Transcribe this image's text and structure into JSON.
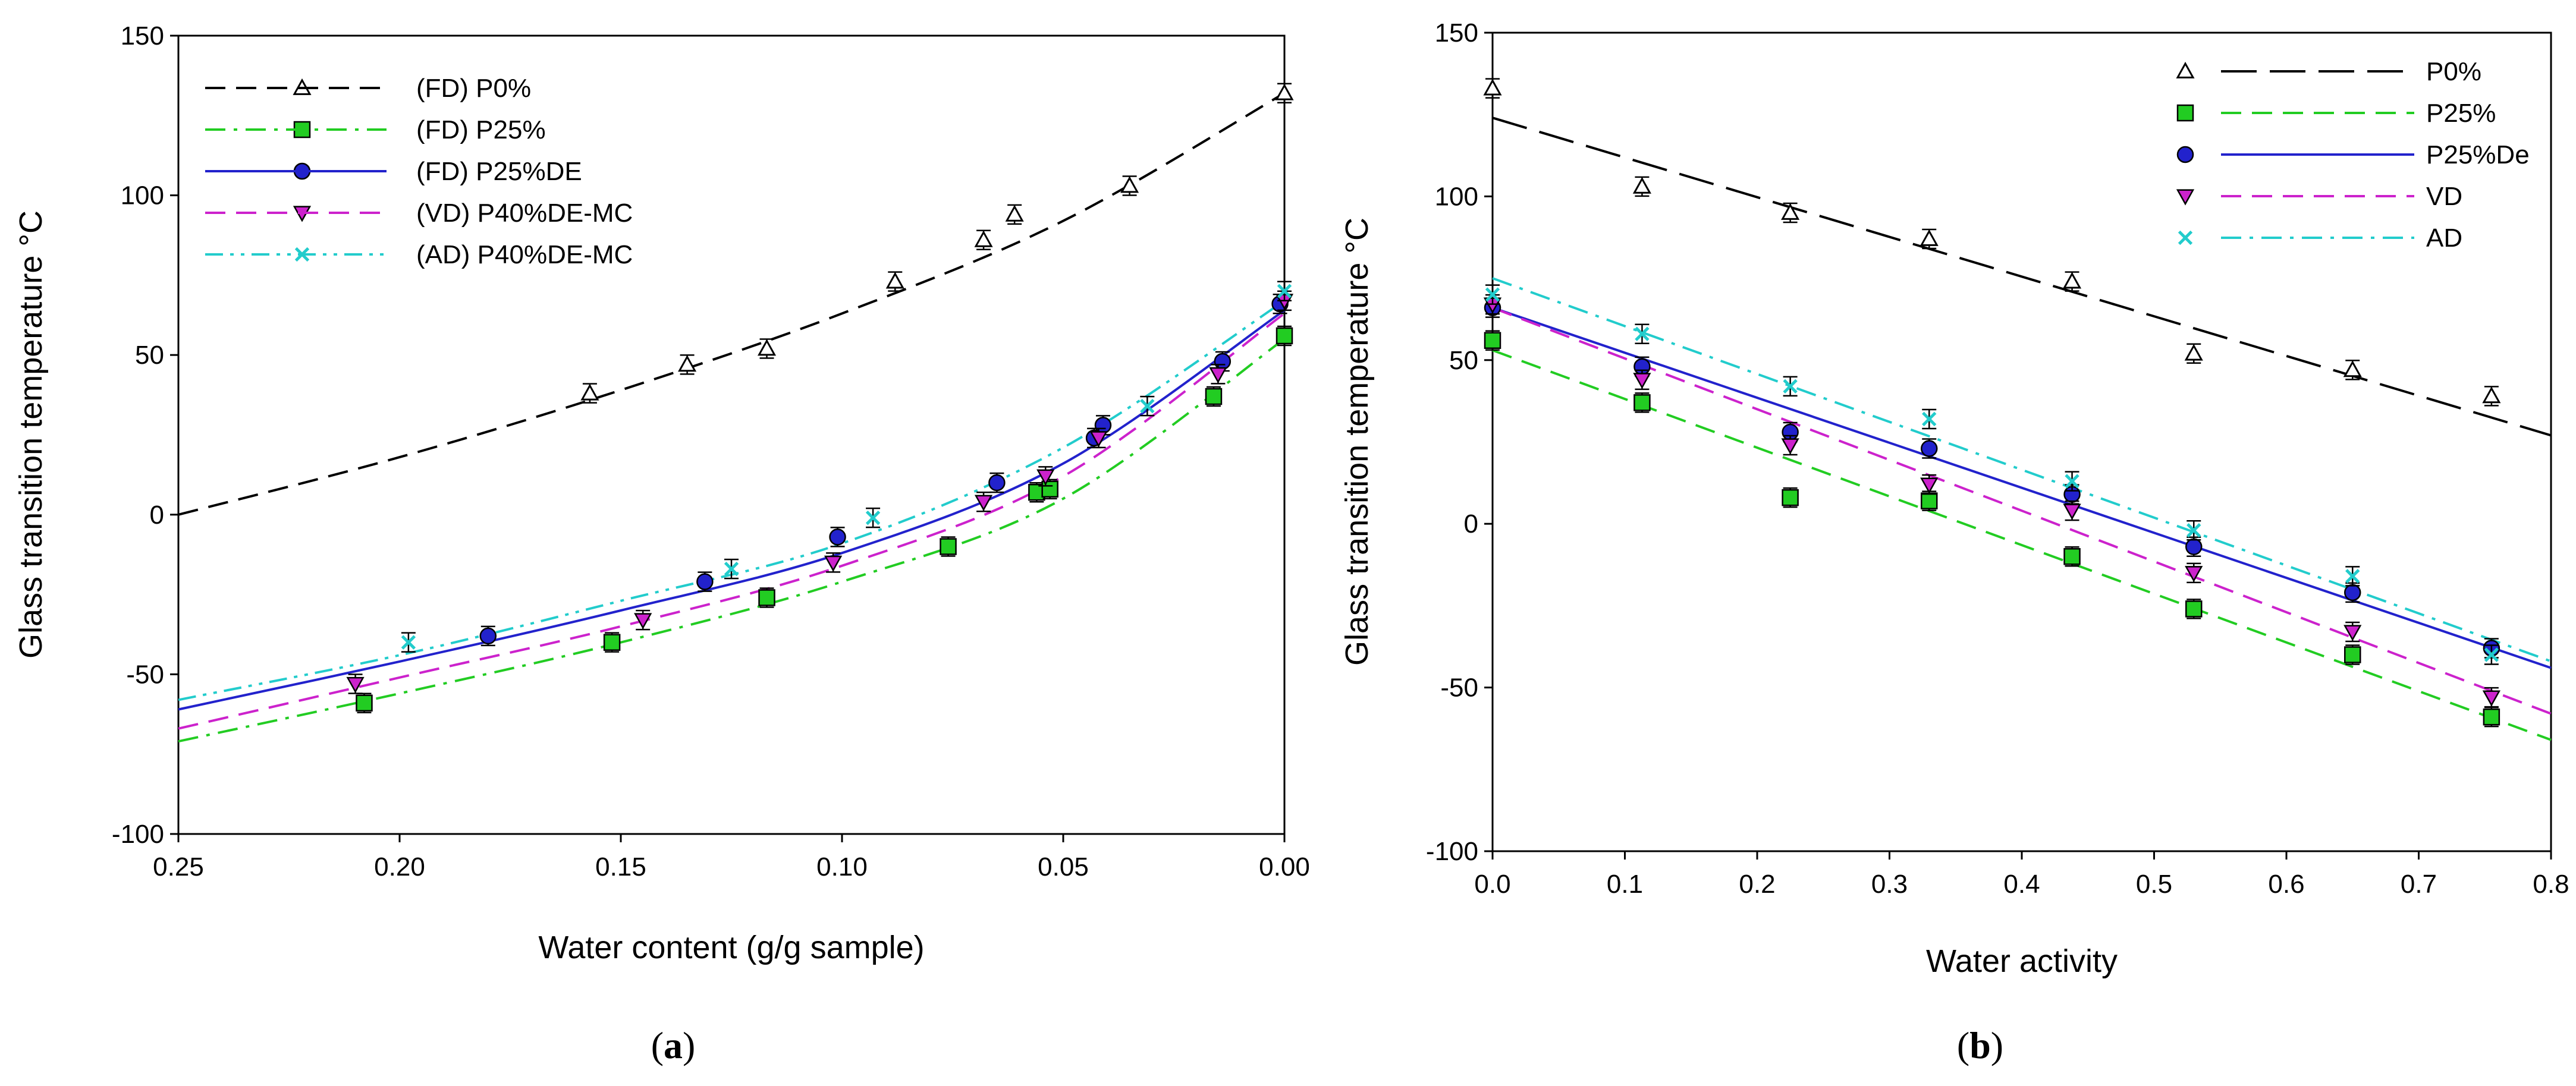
{
  "captions": [
    {
      "open": "(",
      "letter": "a",
      "close": ")"
    },
    {
      "open": "(",
      "letter": "b",
      "close": ")"
    }
  ],
  "chart_data": [
    {
      "type": "scatter",
      "ylabel": "Glass transition temperature °C",
      "xlabel": "Water content (g/g sample)",
      "xlim": [
        0.25,
        0.0
      ],
      "ylim": [
        -100,
        150
      ],
      "x_reversed": true,
      "x_ticks": [
        0.25,
        0.2,
        0.15,
        0.1,
        0.05,
        0.0
      ],
      "x_tick_labels": [
        "0.25",
        "0.20",
        "0.15",
        "0.10",
        "0.05",
        "0.00"
      ],
      "y_ticks": [
        -100,
        -50,
        0,
        50,
        100,
        150
      ],
      "y_tick_labels": [
        "-100",
        "-50",
        "0",
        "50",
        "100",
        "150"
      ],
      "legend_position": "top-left",
      "series": [
        {
          "name": "(FD) P0%",
          "marker": "triangle-up-open",
          "color": "#000000",
          "dash": "dash",
          "x": [
            0.157,
            0.135,
            0.117,
            0.088,
            0.068,
            0.061,
            0.035,
            0.0
          ],
          "y": [
            38,
            47,
            52,
            73,
            86,
            94,
            103,
            132
          ],
          "fit": [
            [
              0.25,
              0
            ],
            [
              0.2,
              18
            ],
            [
              0.15,
              39
            ],
            [
              0.1,
              63
            ],
            [
              0.05,
              92
            ],
            [
              0.0,
              132
            ]
          ]
        },
        {
          "name": "(FD) P25%",
          "marker": "square",
          "color": "#22cc22",
          "dash": "dashdot",
          "x": [
            0.208,
            0.152,
            0.117,
            0.076,
            0.056,
            0.053,
            0.016,
            0.0
          ],
          "y": [
            -59,
            -40,
            -26,
            -10,
            7,
            8,
            37,
            56
          ],
          "fit": [
            [
              0.25,
              -71
            ],
            [
              0.2,
              -56
            ],
            [
              0.15,
              -40
            ],
            [
              0.1,
              -21
            ],
            [
              0.05,
              5
            ],
            [
              0.0,
              55
            ]
          ]
        },
        {
          "name": "(FD) P25%DE",
          "marker": "circle",
          "color": "#2222cc",
          "dash": "solid",
          "x": [
            0.18,
            0.131,
            0.101,
            0.065,
            0.043,
            0.041,
            0.014,
            0.001
          ],
          "y": [
            -38,
            -21,
            -7,
            10,
            24,
            28,
            48,
            66
          ],
          "fit": [
            [
              0.25,
              -61
            ],
            [
              0.2,
              -46
            ],
            [
              0.15,
              -30
            ],
            [
              0.1,
              -12
            ],
            [
              0.05,
              16
            ],
            [
              0.0,
              64
            ]
          ]
        },
        {
          "name": "(VD) P40%DE-MC",
          "marker": "triangle-down",
          "color": "#cc22cc",
          "dash": "dash",
          "x": [
            0.21,
            0.145,
            0.102,
            0.068,
            0.054,
            0.042,
            0.015,
            0.0
          ],
          "y": [
            -53,
            -33,
            -15,
            4,
            12,
            24,
            44,
            67
          ],
          "fit": [
            [
              0.25,
              -67
            ],
            [
              0.2,
              -51
            ],
            [
              0.15,
              -35
            ],
            [
              0.1,
              -16
            ],
            [
              0.05,
              12
            ],
            [
              0.0,
              63
            ]
          ]
        },
        {
          "name": "(AD) P40%DE-MC",
          "marker": "x",
          "color": "#22cccc",
          "dash": "dashdotdot",
          "x": [
            0.198,
            0.125,
            0.093,
            0.031,
            0.0
          ],
          "y": [
            -40,
            -17,
            -1,
            34,
            70
          ],
          "fit": [
            [
              0.25,
              -58
            ],
            [
              0.2,
              -44
            ],
            [
              0.15,
              -27
            ],
            [
              0.1,
              -9
            ],
            [
              0.05,
              21
            ],
            [
              0.0,
              67
            ]
          ]
        }
      ]
    },
    {
      "type": "scatter",
      "ylabel": "Glass transition temperature °C",
      "xlabel": "Water activity",
      "xlim": [
        0.0,
        0.8
      ],
      "ylim": [
        -100,
        150
      ],
      "x_ticks": [
        0.0,
        0.1,
        0.2,
        0.3,
        0.4,
        0.5,
        0.6,
        0.7,
        0.8
      ],
      "x_tick_labels": [
        "0.0",
        "0.1",
        "0.2",
        "0.3",
        "0.4",
        "0.5",
        "0.6",
        "0.7",
        "0.8"
      ],
      "y_ticks": [
        -100,
        -50,
        0,
        50,
        100,
        150
      ],
      "y_tick_labels": [
        "-100",
        "-50",
        "0",
        "50",
        "100",
        "150"
      ],
      "legend_position": "top-right",
      "series": [
        {
          "name": "P0%",
          "marker": "triangle-up-open",
          "color": "#000000",
          "dash": "longdash",
          "x": [
            0.0,
            0.113,
            0.225,
            0.33,
            0.438,
            0.53,
            0.65,
            0.755
          ],
          "y": [
            133,
            103,
            95,
            87,
            74,
            52,
            47,
            39
          ],
          "fit": [
            [
              0.0,
              124
            ],
            [
              0.8,
              27
            ]
          ]
        },
        {
          "name": "P25%",
          "marker": "square",
          "color": "#22cc22",
          "dash": "dash",
          "x": [
            0.0,
            0.113,
            0.225,
            0.33,
            0.438,
            0.53,
            0.65,
            0.755
          ],
          "y": [
            56,
            37,
            8,
            7,
            -10,
            -26,
            -40,
            -59
          ],
          "fit": [
            [
              0.0,
              53
            ],
            [
              0.8,
              -66
            ]
          ]
        },
        {
          "name": "P25%De",
          "marker": "circle",
          "color": "#2222cc",
          "dash": "solid",
          "x": [
            0.0,
            0.113,
            0.225,
            0.33,
            0.438,
            0.53,
            0.65,
            0.755
          ],
          "y": [
            66,
            48,
            28,
            23,
            9,
            -7,
            -21,
            -38
          ],
          "fit": [
            [
              0.0,
              66
            ],
            [
              0.8,
              -44
            ]
          ]
        },
        {
          "name": "VD",
          "marker": "triangle-down",
          "color": "#cc22cc",
          "dash": "dash",
          "x": [
            0.0,
            0.113,
            0.225,
            0.33,
            0.438,
            0.53,
            0.65,
            0.755
          ],
          "y": [
            67,
            44,
            24,
            12,
            4,
            -15,
            -33,
            -53
          ],
          "fit": [
            [
              0.0,
              66
            ],
            [
              0.8,
              -58
            ]
          ]
        },
        {
          "name": "AD",
          "marker": "x",
          "color": "#22cccc",
          "dash": "dashdot",
          "x": [
            0.0,
            0.113,
            0.225,
            0.33,
            0.438,
            0.53,
            0.65,
            0.755
          ],
          "y": [
            70,
            58,
            42,
            32,
            13,
            -2,
            -16,
            -40
          ],
          "fit": [
            [
              0.0,
              75
            ],
            [
              0.8,
              -42
            ]
          ]
        }
      ]
    }
  ]
}
